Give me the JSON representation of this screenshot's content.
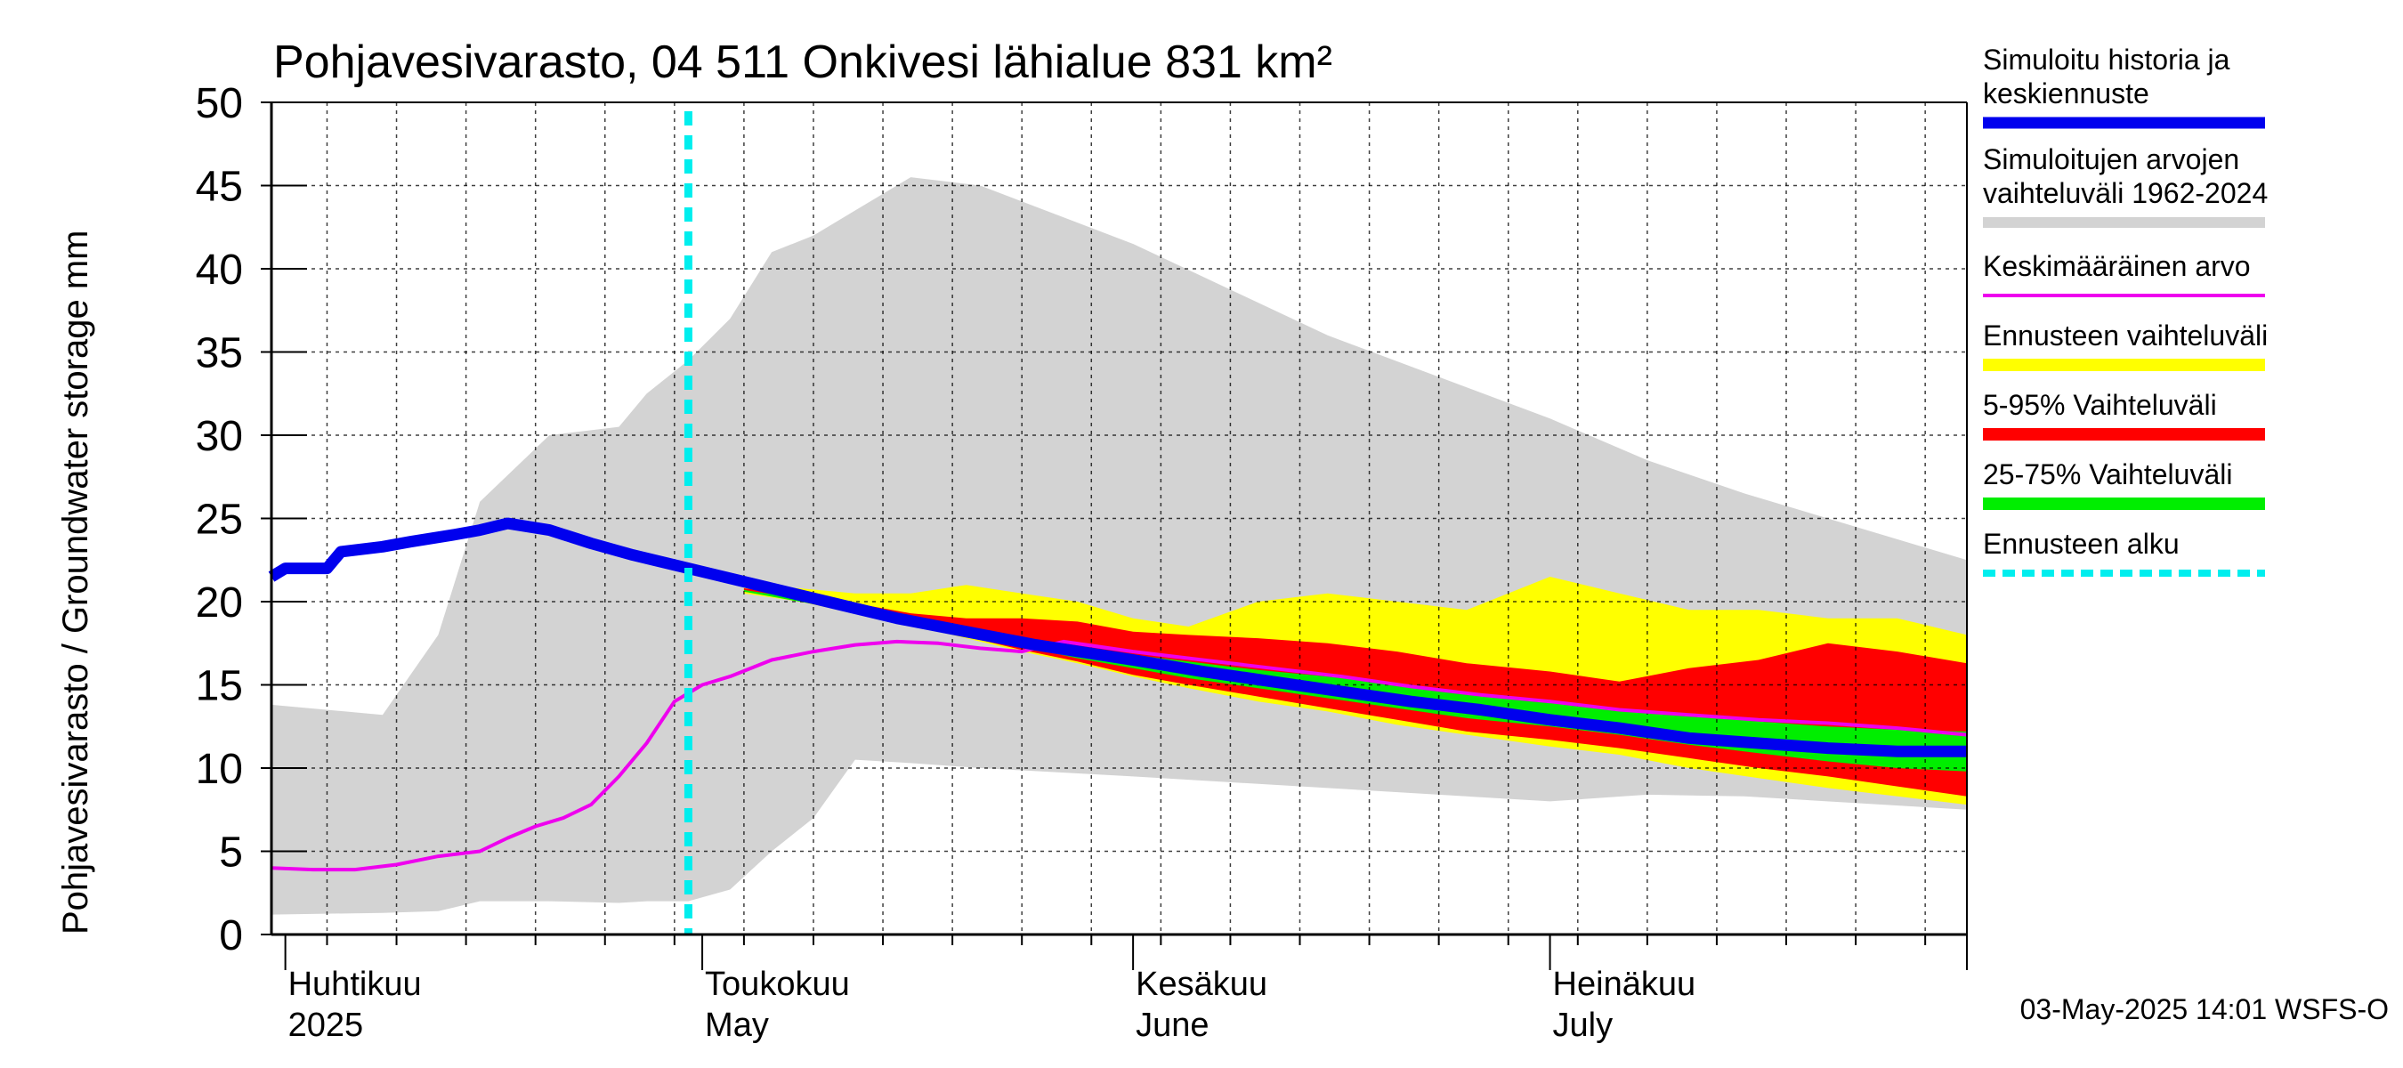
{
  "chart_data": {
    "type": "area",
    "title": "Pohjavesivarasto, 04 511 Onkivesi lähialue 831 km²",
    "ylabel": "Pohjavesivarasto / Groundwater storage   mm",
    "ylim": [
      0,
      50
    ],
    "yticks": [
      "0",
      "5",
      "10",
      "15",
      "20",
      "25",
      "30",
      "35",
      "40",
      "45",
      "50"
    ],
    "xlim": [
      "2025-03-31",
      "2025-07-31"
    ],
    "grid": true,
    "months": [
      {
        "date": "2025-04-01",
        "fi": "Huhtikuu",
        "en": "2025"
      },
      {
        "date": "2025-05-01",
        "fi": "Toukokuu",
        "en": "May"
      },
      {
        "date": "2025-06-01",
        "fi": "Kesäkuu",
        "en": "June"
      },
      {
        "date": "2025-07-01",
        "fi": "Heinäkuu",
        "en": "July"
      }
    ],
    "forecast_start": "2025-04-30",
    "legend": [
      {
        "label": "Simuloitu historia ja keskiennuste",
        "color": "#0000ee"
      },
      {
        "label": "Simuloitujen arvojen vaihteluväli 1962-2024",
        "color": "#d3d3d3"
      },
      {
        "label": "Keskimääräinen arvo",
        "color": "#ee00ee"
      },
      {
        "label": "Ennusteen vaihteluväli",
        "color": "#ffff00"
      },
      {
        "label": "5-95% Vaihteluväli",
        "color": "#ff0000"
      },
      {
        "label": "25-75% Vaihteluväli",
        "color": "#00ee00"
      },
      {
        "label": "Ennusteen alku",
        "color": "#00eeee"
      }
    ],
    "series": [
      {
        "name": "Simuloitujen arvojen vaihteluväli 1962-2024",
        "kind": "band",
        "x": [
          "2025-03-31",
          "2025-04-08",
          "2025-04-12",
          "2025-04-15",
          "2025-04-20",
          "2025-04-25",
          "2025-04-27",
          "2025-04-30",
          "2025-05-03",
          "2025-05-06",
          "2025-05-09",
          "2025-05-12",
          "2025-05-16",
          "2025-05-21",
          "2025-06-01",
          "2025-06-15",
          "2025-07-01",
          "2025-07-08",
          "2025-07-15",
          "2025-07-31"
        ],
        "upper": [
          13.8,
          13.2,
          18.0,
          26.0,
          30.0,
          30.5,
          32.5,
          34.5,
          37.0,
          41.0,
          42.0,
          43.5,
          45.5,
          45.0,
          41.5,
          36.0,
          31.0,
          28.5,
          26.5,
          22.5
        ],
        "lower": [
          1.2,
          1.3,
          1.4,
          2.0,
          2.0,
          1.9,
          2.0,
          2.0,
          2.7,
          5.0,
          7.0,
          10.5,
          10.3,
          10.0,
          9.5,
          8.8,
          8.0,
          8.4,
          8.3,
          7.5
        ]
      },
      {
        "name": "Ennusteen vaihteluväli",
        "kind": "band",
        "x": [
          "2025-05-04",
          "2025-05-08",
          "2025-05-12",
          "2025-05-16",
          "2025-05-20",
          "2025-05-24",
          "2025-05-28",
          "2025-06-01",
          "2025-06-05",
          "2025-06-10",
          "2025-06-15",
          "2025-06-20",
          "2025-06-25",
          "2025-07-01",
          "2025-07-06",
          "2025-07-11",
          "2025-07-16",
          "2025-07-21",
          "2025-07-26",
          "2025-07-31"
        ],
        "upper": [
          21.0,
          20.8,
          20.5,
          20.5,
          21.0,
          20.5,
          20.0,
          19.0,
          18.5,
          20.0,
          20.5,
          20.0,
          19.5,
          21.5,
          20.5,
          19.5,
          19.5,
          19.0,
          19.0,
          18.0
        ],
        "lower": [
          20.5,
          20.0,
          19.3,
          18.6,
          17.8,
          17.0,
          16.3,
          15.5,
          14.8,
          14.0,
          13.4,
          12.6,
          12.0,
          11.3,
          10.8,
          10.0,
          9.4,
          8.8,
          8.3,
          7.8
        ]
      },
      {
        "name": "5-95% Vaihteluväli",
        "kind": "band",
        "x": [
          "2025-05-04",
          "2025-05-08",
          "2025-05-12",
          "2025-05-16",
          "2025-05-20",
          "2025-05-24",
          "2025-05-28",
          "2025-06-01",
          "2025-06-05",
          "2025-06-10",
          "2025-06-15",
          "2025-06-20",
          "2025-06-25",
          "2025-07-01",
          "2025-07-06",
          "2025-07-11",
          "2025-07-16",
          "2025-07-21",
          "2025-07-26",
          "2025-07-31"
        ],
        "upper": [
          20.8,
          20.4,
          19.9,
          19.3,
          19.0,
          19.0,
          18.8,
          18.2,
          18.0,
          17.8,
          17.5,
          17.0,
          16.3,
          15.8,
          15.2,
          16.0,
          16.5,
          17.5,
          17.0,
          16.3
        ],
        "lower": [
          20.6,
          20.1,
          19.4,
          18.7,
          17.9,
          17.1,
          16.4,
          15.6,
          15.0,
          14.3,
          13.6,
          12.9,
          12.2,
          11.7,
          11.2,
          10.6,
          10.0,
          9.5,
          8.9,
          8.3
        ]
      },
      {
        "name": "25-75% Vaihteluväli",
        "kind": "band",
        "x": [
          "2025-05-04",
          "2025-05-08",
          "2025-05-12",
          "2025-05-16",
          "2025-05-20",
          "2025-05-24",
          "2025-05-28",
          "2025-06-01",
          "2025-06-05",
          "2025-06-10",
          "2025-06-15",
          "2025-06-20",
          "2025-06-25",
          "2025-07-01",
          "2025-07-06",
          "2025-07-11",
          "2025-07-16",
          "2025-07-21",
          "2025-07-26",
          "2025-07-31"
        ],
        "upper": [
          20.7,
          20.2,
          19.6,
          19.0,
          18.4,
          17.8,
          17.3,
          16.8,
          16.4,
          15.9,
          15.5,
          15.0,
          14.5,
          14.0,
          13.5,
          13.1,
          12.8,
          12.5,
          12.3,
          12.2
        ],
        "lower": [
          20.6,
          20.0,
          19.4,
          18.7,
          18.0,
          17.3,
          16.6,
          16.0,
          15.4,
          14.8,
          14.2,
          13.6,
          13.0,
          12.5,
          12.0,
          11.4,
          10.9,
          10.4,
          10.0,
          9.8
        ]
      },
      {
        "name": "Keskimääräinen arvo",
        "kind": "line",
        "x": [
          "2025-03-31",
          "2025-04-03",
          "2025-04-06",
          "2025-04-09",
          "2025-04-12",
          "2025-04-15",
          "2025-04-17",
          "2025-04-19",
          "2025-04-21",
          "2025-04-23",
          "2025-04-25",
          "2025-04-27",
          "2025-04-29",
          "2025-05-01",
          "2025-05-03",
          "2025-05-06",
          "2025-05-09",
          "2025-05-12",
          "2025-05-15",
          "2025-05-18",
          "2025-05-21",
          "2025-05-24",
          "2025-05-27",
          "2025-06-01",
          "2025-06-06",
          "2025-06-11",
          "2025-06-16",
          "2025-06-21",
          "2025-06-26",
          "2025-07-01",
          "2025-07-06",
          "2025-07-11",
          "2025-07-16",
          "2025-07-21",
          "2025-07-26",
          "2025-07-31"
        ],
        "y": [
          4.0,
          3.9,
          3.9,
          4.2,
          4.7,
          5.0,
          5.8,
          6.5,
          7.0,
          7.8,
          9.5,
          11.5,
          14.0,
          15.0,
          15.5,
          16.5,
          17.0,
          17.4,
          17.6,
          17.5,
          17.2,
          17.0,
          17.6,
          17.0,
          16.5,
          16.0,
          15.5,
          14.9,
          14.4,
          14.0,
          13.5,
          13.2,
          12.9,
          12.7,
          12.4,
          12.0
        ]
      },
      {
        "name": "Simuloitu historia ja keskiennuste",
        "kind": "line",
        "x": [
          "2025-03-31",
          "2025-04-01",
          "2025-04-04",
          "2025-04-05",
          "2025-04-08",
          "2025-04-10",
          "2025-04-13",
          "2025-04-15",
          "2025-04-17",
          "2025-04-20",
          "2025-04-23",
          "2025-04-26",
          "2025-04-30",
          "2025-05-05",
          "2025-05-10",
          "2025-05-15",
          "2025-05-20",
          "2025-05-25",
          "2025-06-01",
          "2025-06-06",
          "2025-06-11",
          "2025-06-16",
          "2025-06-21",
          "2025-06-26",
          "2025-07-01",
          "2025-07-06",
          "2025-07-11",
          "2025-07-16",
          "2025-07-21",
          "2025-07-26",
          "2025-07-31"
        ],
        "y": [
          21.5,
          22.0,
          22.0,
          23.0,
          23.3,
          23.6,
          24.0,
          24.3,
          24.7,
          24.3,
          23.5,
          22.8,
          22.0,
          21.0,
          20.0,
          19.0,
          18.2,
          17.4,
          16.5,
          15.8,
          15.2,
          14.6,
          14.0,
          13.5,
          12.9,
          12.4,
          11.8,
          11.5,
          11.2,
          11.0,
          11.0
        ]
      }
    ]
  },
  "footer": "03-May-2025 14:01 WSFS-O"
}
